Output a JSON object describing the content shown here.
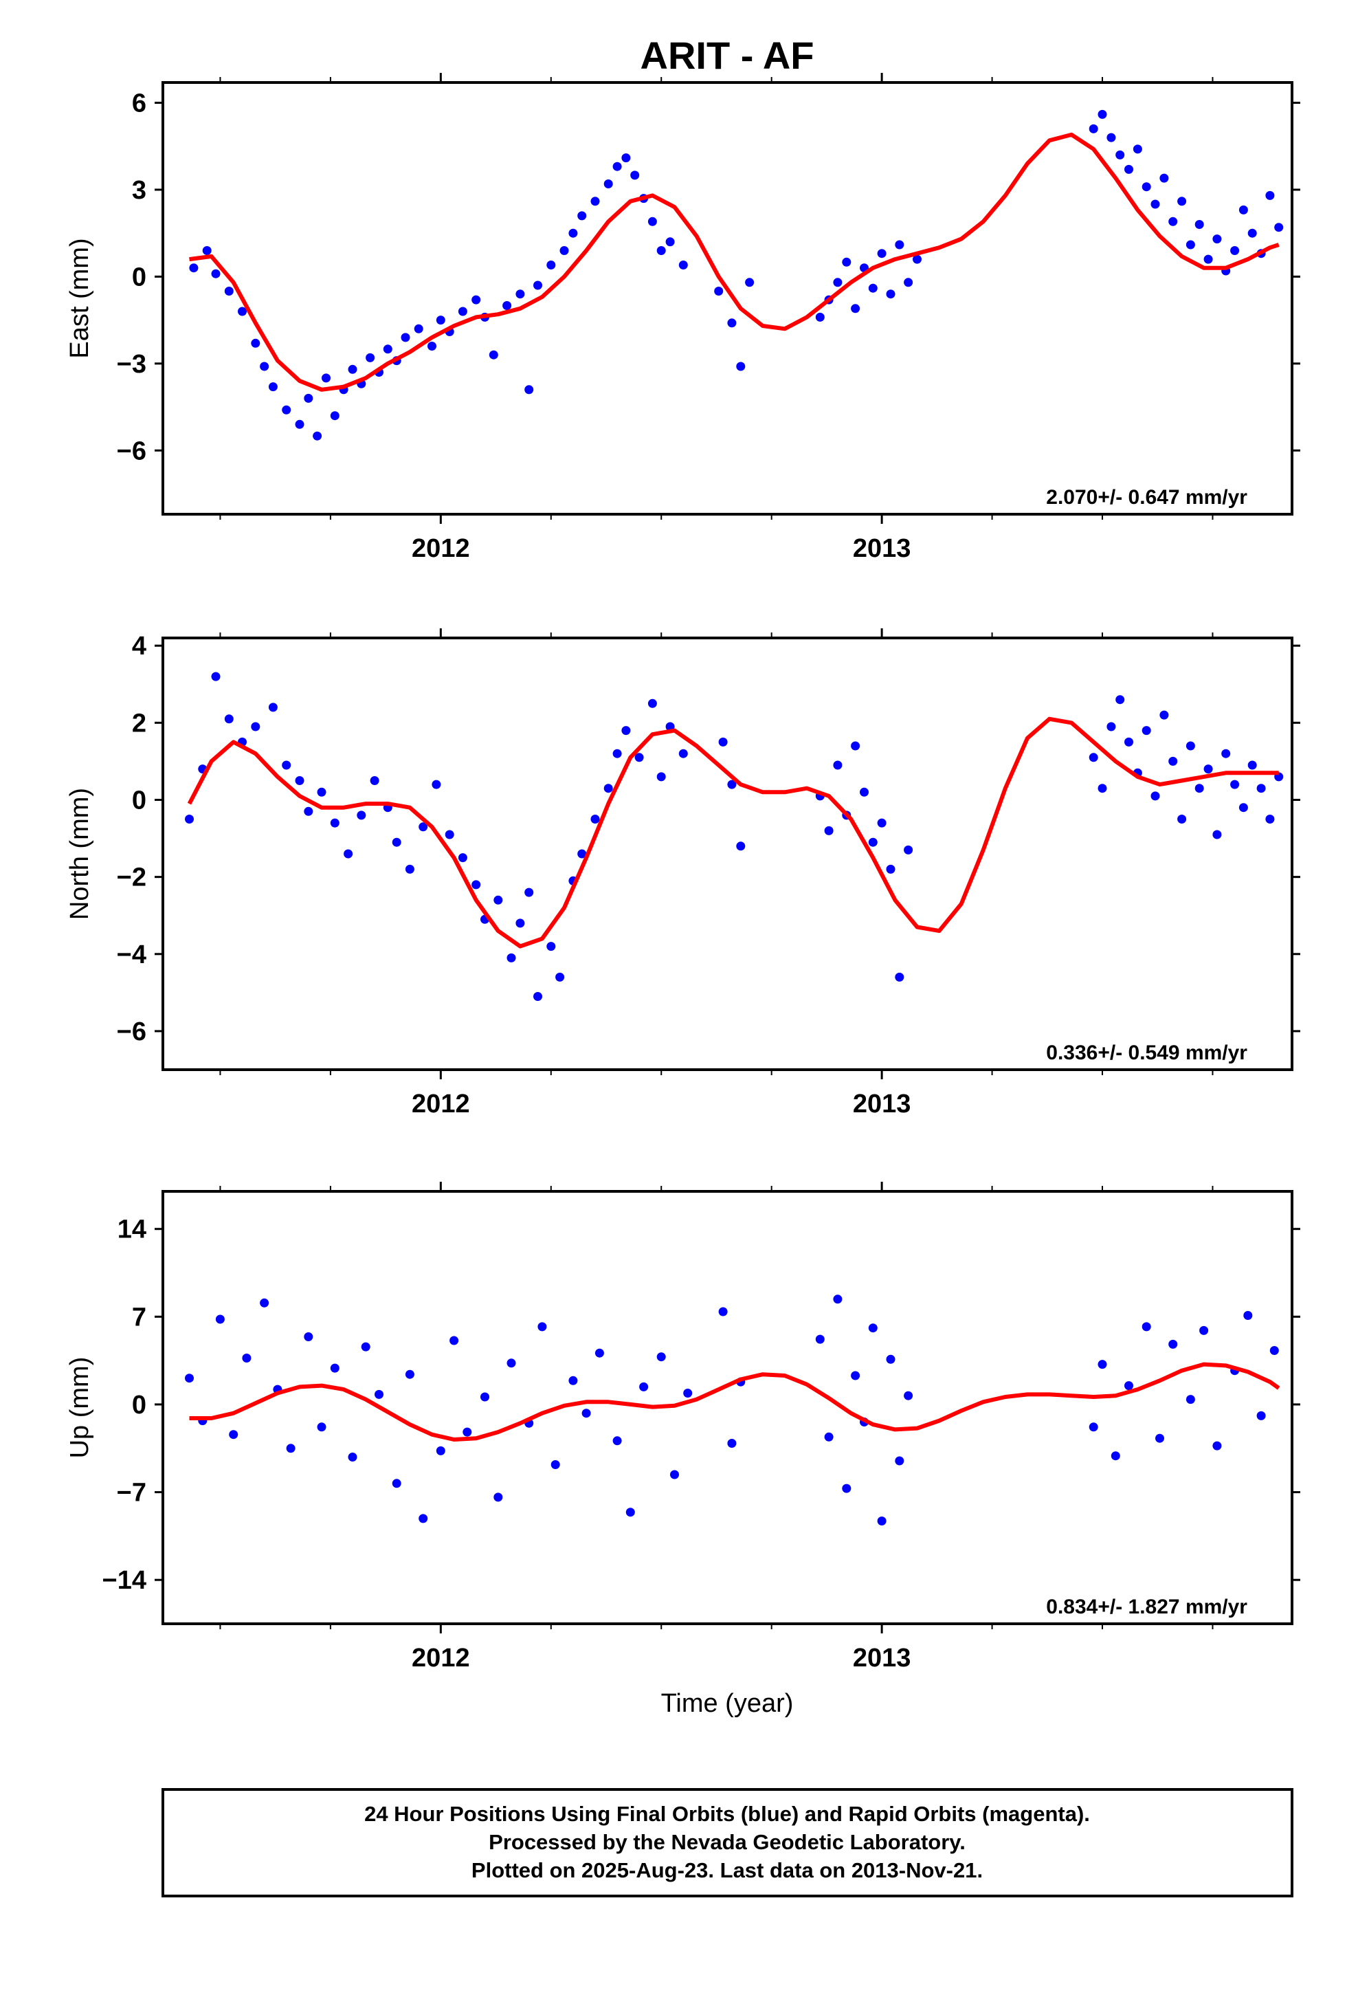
{
  "title": "ARIT - AF",
  "xlabel": "Time (year)",
  "x_ticks": [
    "2012",
    "2013"
  ],
  "footer": [
    "24 Hour Positions Using Final Orbits (blue) and Rapid Orbits (magenta).",
    "Processed by the Nevada Geodetic Laboratory.",
    "Plotted on 2025-Aug-23. Last data on 2013-Nov-21."
  ],
  "colors": {
    "points": "#0000ff",
    "fit": "#ff0000",
    "frame": "#000000"
  },
  "chart_data": [
    {
      "type": "scatter",
      "ylabel": "East (mm)",
      "rate_label": "2.070+/- 0.647 mm/yr",
      "xlim": [
        2011.37,
        2013.93
      ],
      "ylim": [
        -8.2,
        6.7
      ],
      "y_ticks": [
        6,
        3,
        0,
        -3,
        -6
      ],
      "y_tick_labels": [
        "6",
        "3",
        "0",
        "−3",
        "−6"
      ],
      "series": [
        {
          "x": [
            2011.44,
            2011.47,
            2011.49,
            2011.52,
            2011.55,
            2011.58,
            2011.6,
            2011.62,
            2011.65,
            2011.68,
            2011.7,
            2011.72,
            2011.74,
            2011.76,
            2011.78,
            2011.8,
            2011.82,
            2011.84,
            2011.86,
            2011.88,
            2011.9,
            2011.92,
            2011.95,
            2011.98,
            2012.0,
            2012.02,
            2012.05,
            2012.08,
            2012.1,
            2012.12,
            2012.15,
            2012.18,
            2012.2,
            2012.22,
            2012.25,
            2012.28,
            2012.3,
            2012.32,
            2012.35,
            2012.38,
            2012.4,
            2012.42,
            2012.44,
            2012.46,
            2012.48,
            2012.5,
            2012.52,
            2012.55,
            2012.63,
            2012.66,
            2012.68,
            2012.7,
            2012.86,
            2012.88,
            2012.9,
            2012.92,
            2012.94,
            2012.96,
            2012.98,
            2013.0,
            2013.02,
            2013.04,
            2013.06,
            2013.08,
            2013.48,
            2013.5,
            2013.52,
            2013.54,
            2013.56,
            2013.58,
            2013.6,
            2013.62,
            2013.64,
            2013.66,
            2013.68,
            2013.7,
            2013.72,
            2013.74,
            2013.76,
            2013.78,
            2013.8,
            2013.82,
            2013.84,
            2013.86,
            2013.88,
            2013.9
          ],
          "y": [
            0.3,
            0.9,
            0.1,
            -0.5,
            -1.2,
            -2.3,
            -3.1,
            -3.8,
            -4.6,
            -5.1,
            -4.2,
            -5.5,
            -3.5,
            -4.8,
            -3.9,
            -3.2,
            -3.7,
            -2.8,
            -3.3,
            -2.5,
            -2.9,
            -2.1,
            -1.8,
            -2.4,
            -1.5,
            -1.9,
            -1.2,
            -0.8,
            -1.4,
            -2.7,
            -1.0,
            -0.6,
            -3.9,
            -0.3,
            0.4,
            0.9,
            1.5,
            2.1,
            2.6,
            3.2,
            3.8,
            4.1,
            3.5,
            2.7,
            1.9,
            0.9,
            1.2,
            0.4,
            -0.5,
            -1.6,
            -3.1,
            -0.2,
            -1.4,
            -0.8,
            -0.2,
            0.5,
            -1.1,
            0.3,
            -0.4,
            0.8,
            -0.6,
            1.1,
            -0.2,
            0.6,
            5.1,
            5.6,
            4.8,
            4.2,
            3.7,
            4.4,
            3.1,
            2.5,
            3.4,
            1.9,
            2.6,
            1.1,
            1.8,
            0.6,
            1.3,
            0.2,
            0.9,
            2.3,
            1.5,
            0.8,
            2.8,
            1.7
          ]
        },
        {
          "name": "fit",
          "line": true,
          "x": [
            2011.43,
            2011.48,
            2011.53,
            2011.58,
            2011.63,
            2011.68,
            2011.73,
            2011.78,
            2011.83,
            2011.88,
            2011.93,
            2011.98,
            2012.03,
            2012.08,
            2012.13,
            2012.18,
            2012.23,
            2012.28,
            2012.33,
            2012.38,
            2012.43,
            2012.48,
            2012.53,
            2012.58,
            2012.63,
            2012.68,
            2012.73,
            2012.78,
            2012.83,
            2012.88,
            2012.93,
            2012.98,
            2013.03,
            2013.08,
            2013.13,
            2013.18,
            2013.23,
            2013.28,
            2013.33,
            2013.38,
            2013.43,
            2013.48,
            2013.53,
            2013.58,
            2013.63,
            2013.68,
            2013.73,
            2013.78,
            2013.83,
            2013.88,
            2013.9
          ],
          "y": [
            0.6,
            0.7,
            -0.2,
            -1.6,
            -2.9,
            -3.6,
            -3.9,
            -3.8,
            -3.5,
            -3.0,
            -2.6,
            -2.1,
            -1.7,
            -1.4,
            -1.3,
            -1.1,
            -0.7,
            0.0,
            0.9,
            1.9,
            2.6,
            2.8,
            2.4,
            1.4,
            0.0,
            -1.1,
            -1.7,
            -1.8,
            -1.4,
            -0.8,
            -0.2,
            0.3,
            0.6,
            0.8,
            1.0,
            1.3,
            1.9,
            2.8,
            3.9,
            4.7,
            4.9,
            4.4,
            3.4,
            2.3,
            1.4,
            0.7,
            0.3,
            0.3,
            0.6,
            1.0,
            1.1
          ]
        }
      ]
    },
    {
      "type": "scatter",
      "ylabel": "North (mm)",
      "rate_label": "0.336+/- 0.549 mm/yr",
      "xlim": [
        2011.37,
        2013.93
      ],
      "ylim": [
        -7.0,
        4.2
      ],
      "y_ticks": [
        4,
        2,
        0,
        -2,
        -4,
        -6
      ],
      "y_tick_labels": [
        "4",
        "2",
        "0",
        "−2",
        "−4",
        "−6"
      ],
      "series": [
        {
          "x": [
            2011.43,
            2011.46,
            2011.49,
            2011.52,
            2011.55,
            2011.58,
            2011.62,
            2011.65,
            2011.68,
            2011.7,
            2011.73,
            2011.76,
            2011.79,
            2011.82,
            2011.85,
            2011.88,
            2011.9,
            2011.93,
            2011.96,
            2011.99,
            2012.02,
            2012.05,
            2012.08,
            2012.1,
            2012.13,
            2012.16,
            2012.18,
            2012.2,
            2012.22,
            2012.25,
            2012.27,
            2012.3,
            2012.32,
            2012.35,
            2012.38,
            2012.4,
            2012.42,
            2012.45,
            2012.48,
            2012.5,
            2012.52,
            2012.55,
            2012.64,
            2012.66,
            2012.68,
            2012.86,
            2012.88,
            2012.9,
            2012.92,
            2012.94,
            2012.96,
            2012.98,
            2013.0,
            2013.02,
            2013.04,
            2013.06,
            2013.48,
            2013.5,
            2013.52,
            2013.54,
            2013.56,
            2013.58,
            2013.6,
            2013.62,
            2013.64,
            2013.66,
            2013.68,
            2013.7,
            2013.72,
            2013.74,
            2013.76,
            2013.78,
            2013.8,
            2013.82,
            2013.84,
            2013.86,
            2013.88,
            2013.9
          ],
          "y": [
            -0.5,
            0.8,
            3.2,
            2.1,
            1.5,
            1.9,
            2.4,
            0.9,
            0.5,
            -0.3,
            0.2,
            -0.6,
            -1.4,
            -0.4,
            0.5,
            -0.2,
            -1.1,
            -1.8,
            -0.7,
            0.4,
            -0.9,
            -1.5,
            -2.2,
            -3.1,
            -2.6,
            -4.1,
            -3.2,
            -2.4,
            -5.1,
            -3.8,
            -4.6,
            -2.1,
            -1.4,
            -0.5,
            0.3,
            1.2,
            1.8,
            1.1,
            2.5,
            0.6,
            1.9,
            1.2,
            1.5,
            0.4,
            -1.2,
            0.1,
            -0.8,
            0.9,
            -0.4,
            1.4,
            0.2,
            -1.1,
            -0.6,
            -1.8,
            -4.6,
            -1.3,
            1.1,
            0.3,
            1.9,
            2.6,
            1.5,
            0.7,
            1.8,
            0.1,
            2.2,
            1.0,
            -0.5,
            1.4,
            0.3,
            0.8,
            -0.9,
            1.2,
            0.4,
            -0.2,
            0.9,
            0.3,
            -0.5,
            0.6
          ]
        },
        {
          "name": "fit",
          "line": true,
          "x": [
            2011.43,
            2011.48,
            2011.53,
            2011.58,
            2011.63,
            2011.68,
            2011.73,
            2011.78,
            2011.83,
            2011.88,
            2011.93,
            2011.98,
            2012.03,
            2012.08,
            2012.13,
            2012.18,
            2012.23,
            2012.28,
            2012.33,
            2012.38,
            2012.43,
            2012.48,
            2012.53,
            2012.58,
            2012.63,
            2012.68,
            2012.73,
            2012.78,
            2012.83,
            2012.88,
            2012.93,
            2012.98,
            2013.03,
            2013.08,
            2013.13,
            2013.18,
            2013.23,
            2013.28,
            2013.33,
            2013.38,
            2013.43,
            2013.48,
            2013.53,
            2013.58,
            2013.63,
            2013.68,
            2013.73,
            2013.78,
            2013.83,
            2013.88,
            2013.9
          ],
          "y": [
            -0.1,
            1.0,
            1.5,
            1.2,
            0.6,
            0.1,
            -0.2,
            -0.2,
            -0.1,
            -0.1,
            -0.2,
            -0.7,
            -1.5,
            -2.6,
            -3.4,
            -3.8,
            -3.6,
            -2.8,
            -1.5,
            -0.1,
            1.1,
            1.7,
            1.8,
            1.4,
            0.9,
            0.4,
            0.2,
            0.2,
            0.3,
            0.1,
            -0.5,
            -1.5,
            -2.6,
            -3.3,
            -3.4,
            -2.7,
            -1.3,
            0.3,
            1.6,
            2.1,
            2.0,
            1.5,
            1.0,
            0.6,
            0.4,
            0.5,
            0.6,
            0.7,
            0.7,
            0.7,
            0.7
          ]
        }
      ]
    },
    {
      "type": "scatter",
      "ylabel": "Up (mm)",
      "rate_label": "0.834+/- 1.827 mm/yr",
      "xlim": [
        2011.37,
        2013.93
      ],
      "ylim": [
        -17.5,
        17.0
      ],
      "y_ticks": [
        14,
        7,
        0,
        -7,
        -14
      ],
      "y_tick_labels": [
        "14",
        "7",
        "0",
        "−7",
        "−14"
      ],
      "series": [
        {
          "x": [
            2011.43,
            2011.46,
            2011.5,
            2011.53,
            2011.56,
            2011.6,
            2011.63,
            2011.66,
            2011.7,
            2011.73,
            2011.76,
            2011.8,
            2011.83,
            2011.86,
            2011.9,
            2011.93,
            2011.96,
            2012.0,
            2012.03,
            2012.06,
            2012.1,
            2012.13,
            2012.16,
            2012.2,
            2012.23,
            2012.26,
            2012.3,
            2012.33,
            2012.36,
            2012.4,
            2012.43,
            2012.46,
            2012.5,
            2012.53,
            2012.56,
            2012.64,
            2012.66,
            2012.68,
            2012.86,
            2012.88,
            2012.9,
            2012.92,
            2012.94,
            2012.96,
            2012.98,
            2013.0,
            2013.02,
            2013.04,
            2013.06,
            2013.48,
            2013.5,
            2013.53,
            2013.56,
            2013.6,
            2013.63,
            2013.66,
            2013.7,
            2013.73,
            2013.76,
            2013.8,
            2013.83,
            2013.86,
            2013.89
          ],
          "y": [
            2.1,
            -1.3,
            6.8,
            -2.4,
            3.7,
            8.1,
            1.2,
            -3.5,
            5.4,
            -1.8,
            2.9,
            -4.2,
            4.6,
            0.8,
            -6.3,
            2.4,
            -9.1,
            -3.7,
            5.1,
            -2.2,
            0.6,
            -7.4,
            3.3,
            -1.5,
            6.2,
            -4.8,
            1.9,
            -0.7,
            4.1,
            -2.9,
            -8.6,
            1.4,
            3.8,
            -5.6,
            0.9,
            7.4,
            -3.1,
            1.8,
            5.2,
            -2.6,
            8.4,
            -6.7,
            2.3,
            -1.4,
            6.1,
            -9.3,
            3.6,
            -4.5,
            0.7,
            -1.8,
            3.2,
            -4.1,
            1.5,
            6.2,
            -2.7,
            4.8,
            0.4,
            5.9,
            -3.3,
            2.7,
            7.1,
            -0.9,
            4.3
          ]
        },
        {
          "name": "fit",
          "line": true,
          "x": [
            2011.43,
            2011.48,
            2011.53,
            2011.58,
            2011.63,
            2011.68,
            2011.73,
            2011.78,
            2011.83,
            2011.88,
            2011.93,
            2011.98,
            2012.03,
            2012.08,
            2012.13,
            2012.18,
            2012.23,
            2012.28,
            2012.33,
            2012.38,
            2012.43,
            2012.48,
            2012.53,
            2012.58,
            2012.63,
            2012.68,
            2012.73,
            2012.78,
            2012.83,
            2012.88,
            2012.93,
            2012.98,
            2013.03,
            2013.08,
            2013.13,
            2013.18,
            2013.23,
            2013.28,
            2013.33,
            2013.38,
            2013.43,
            2013.48,
            2013.53,
            2013.58,
            2013.63,
            2013.68,
            2013.73,
            2013.78,
            2013.83,
            2013.88,
            2013.9
          ],
          "y": [
            -1.1,
            -1.1,
            -0.7,
            0.1,
            0.9,
            1.4,
            1.5,
            1.2,
            0.4,
            -0.6,
            -1.6,
            -2.4,
            -2.8,
            -2.7,
            -2.2,
            -1.5,
            -0.7,
            -0.1,
            0.2,
            0.2,
            0.0,
            -0.2,
            -0.1,
            0.4,
            1.2,
            2.0,
            2.4,
            2.3,
            1.6,
            0.5,
            -0.7,
            -1.6,
            -2.0,
            -1.9,
            -1.3,
            -0.5,
            0.2,
            0.6,
            0.8,
            0.8,
            0.7,
            0.6,
            0.7,
            1.2,
            1.9,
            2.7,
            3.2,
            3.1,
            2.6,
            1.8,
            1.3
          ]
        }
      ]
    }
  ]
}
